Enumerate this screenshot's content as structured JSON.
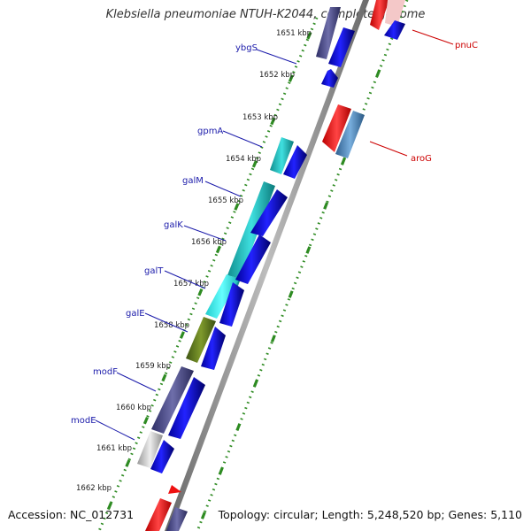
{
  "header": {
    "title": "Klebsiella pneumoniae NTUH-K2044, complete genome"
  },
  "footer": {
    "accession": "Accession: NC_012731",
    "summary": "Topology: circular; Length: 5,248,520 bp; Genes: 5,110"
  },
  "ruler": [
    "1651 kbp",
    "1652 kbp",
    "1653 kbp",
    "1654 kbp",
    "1655 kbp",
    "1656 kbp",
    "1657 kbp",
    "1658 kbp",
    "1659 kbp",
    "1660 kbp",
    "1661 kbp",
    "1662 kbp"
  ],
  "genes_left": [
    {
      "name": "ybgS",
      "color": "#1a1aaa"
    },
    {
      "name": "gpmA",
      "color": "#1a1aaa"
    },
    {
      "name": "galM",
      "color": "#1a1aaa"
    },
    {
      "name": "galK",
      "color": "#1a1aaa"
    },
    {
      "name": "galT",
      "color": "#1a1aaa"
    },
    {
      "name": "galE",
      "color": "#1a1aaa"
    },
    {
      "name": "modF",
      "color": "#1a1aaa"
    },
    {
      "name": "modE",
      "color": "#1a1aaa"
    }
  ],
  "genes_right": [
    {
      "name": "pnuC",
      "color": "#cc0000"
    },
    {
      "name": "aroG",
      "color": "#cc0000"
    }
  ],
  "colors": {
    "backbone": "#888888",
    "tick": "#2e8b22",
    "cds_blue": "#0a0aee",
    "cyan": "#22cccc",
    "olive": "#667722",
    "slate": "#4a4a88",
    "gray": "#bbbbbb",
    "red": "#ee1111",
    "steel": "#4f86b8"
  }
}
